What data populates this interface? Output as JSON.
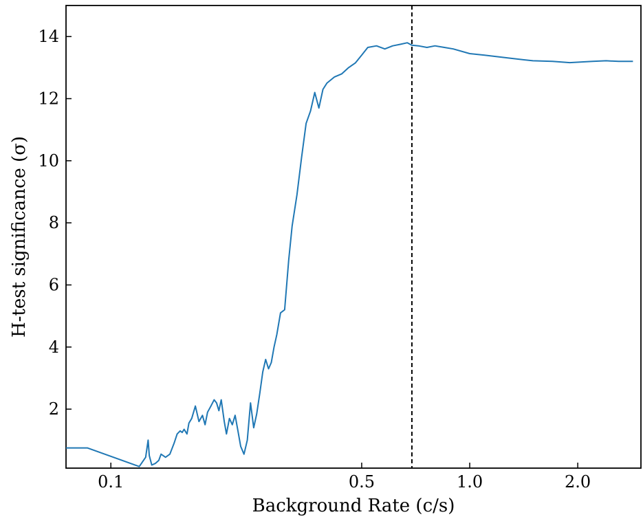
{
  "chart_data": {
    "type": "line",
    "xlabel": "Background Rate (c/s)",
    "ylabel": "H-test significance (σ)",
    "x_scale": "log",
    "xlim": [
      0.075,
      3.0
    ],
    "ylim": [
      0.1,
      15.0
    ],
    "grid": false,
    "legend": "none",
    "x_ticks": [
      {
        "value": 0.1,
        "label": "0.1"
      },
      {
        "value": 0.5,
        "label": "0.5"
      },
      {
        "value": 1.0,
        "label": "1.0"
      },
      {
        "value": 2.0,
        "label": "2.0"
      }
    ],
    "y_ticks": [
      {
        "value": 2,
        "label": "2"
      },
      {
        "value": 4,
        "label": "4"
      },
      {
        "value": 6,
        "label": "6"
      },
      {
        "value": 8,
        "label": "8"
      },
      {
        "value": 10,
        "label": "10"
      },
      {
        "value": 12,
        "label": "12"
      },
      {
        "value": 14,
        "label": "14"
      }
    ],
    "reference_line": {
      "axis": "x",
      "value": 0.69,
      "style": "dashed",
      "color": "#000000"
    },
    "series": [
      {
        "color": "#1f77b4",
        "x": [
          0.075,
          0.086,
          0.12,
          0.125,
          0.127,
          0.128,
          0.13,
          0.133,
          0.136,
          0.138,
          0.14,
          0.142,
          0.146,
          0.15,
          0.153,
          0.156,
          0.158,
          0.16,
          0.163,
          0.165,
          0.168,
          0.172,
          0.176,
          0.18,
          0.183,
          0.186,
          0.19,
          0.194,
          0.197,
          0.2,
          0.203,
          0.207,
          0.21,
          0.214,
          0.218,
          0.222,
          0.226,
          0.23,
          0.235,
          0.24,
          0.245,
          0.25,
          0.255,
          0.26,
          0.265,
          0.27,
          0.275,
          0.28,
          0.285,
          0.29,
          0.297,
          0.305,
          0.313,
          0.32,
          0.33,
          0.34,
          0.35,
          0.36,
          0.37,
          0.38,
          0.39,
          0.4,
          0.42,
          0.44,
          0.46,
          0.48,
          0.5,
          0.52,
          0.55,
          0.58,
          0.61,
          0.64,
          0.67,
          0.69,
          0.72,
          0.76,
          0.8,
          0.85,
          0.9,
          1.0,
          1.1,
          1.3,
          1.5,
          1.7,
          1.9,
          2.2,
          2.4,
          2.6,
          2.85
        ],
        "y": [
          0.75,
          0.75,
          0.15,
          0.45,
          1.0,
          0.5,
          0.2,
          0.25,
          0.35,
          0.55,
          0.5,
          0.45,
          0.55,
          0.9,
          1.2,
          1.3,
          1.25,
          1.35,
          1.2,
          1.55,
          1.7,
          2.1,
          1.6,
          1.8,
          1.5,
          1.9,
          2.1,
          2.3,
          2.2,
          1.95,
          2.3,
          1.6,
          1.2,
          1.7,
          1.5,
          1.8,
          1.3,
          0.8,
          0.55,
          1.0,
          2.2,
          1.4,
          1.85,
          2.5,
          3.2,
          3.6,
          3.3,
          3.5,
          4.0,
          4.4,
          5.1,
          5.2,
          6.8,
          7.9,
          8.9,
          10.1,
          11.2,
          11.6,
          12.2,
          11.7,
          12.3,
          12.5,
          12.7,
          12.8,
          13.0,
          13.15,
          13.4,
          13.65,
          13.7,
          13.6,
          13.7,
          13.75,
          13.8,
          13.72,
          13.7,
          13.65,
          13.7,
          13.65,
          13.6,
          13.45,
          13.4,
          13.3,
          13.22,
          13.2,
          13.16,
          13.2,
          13.22,
          13.2,
          13.2
        ]
      }
    ]
  }
}
